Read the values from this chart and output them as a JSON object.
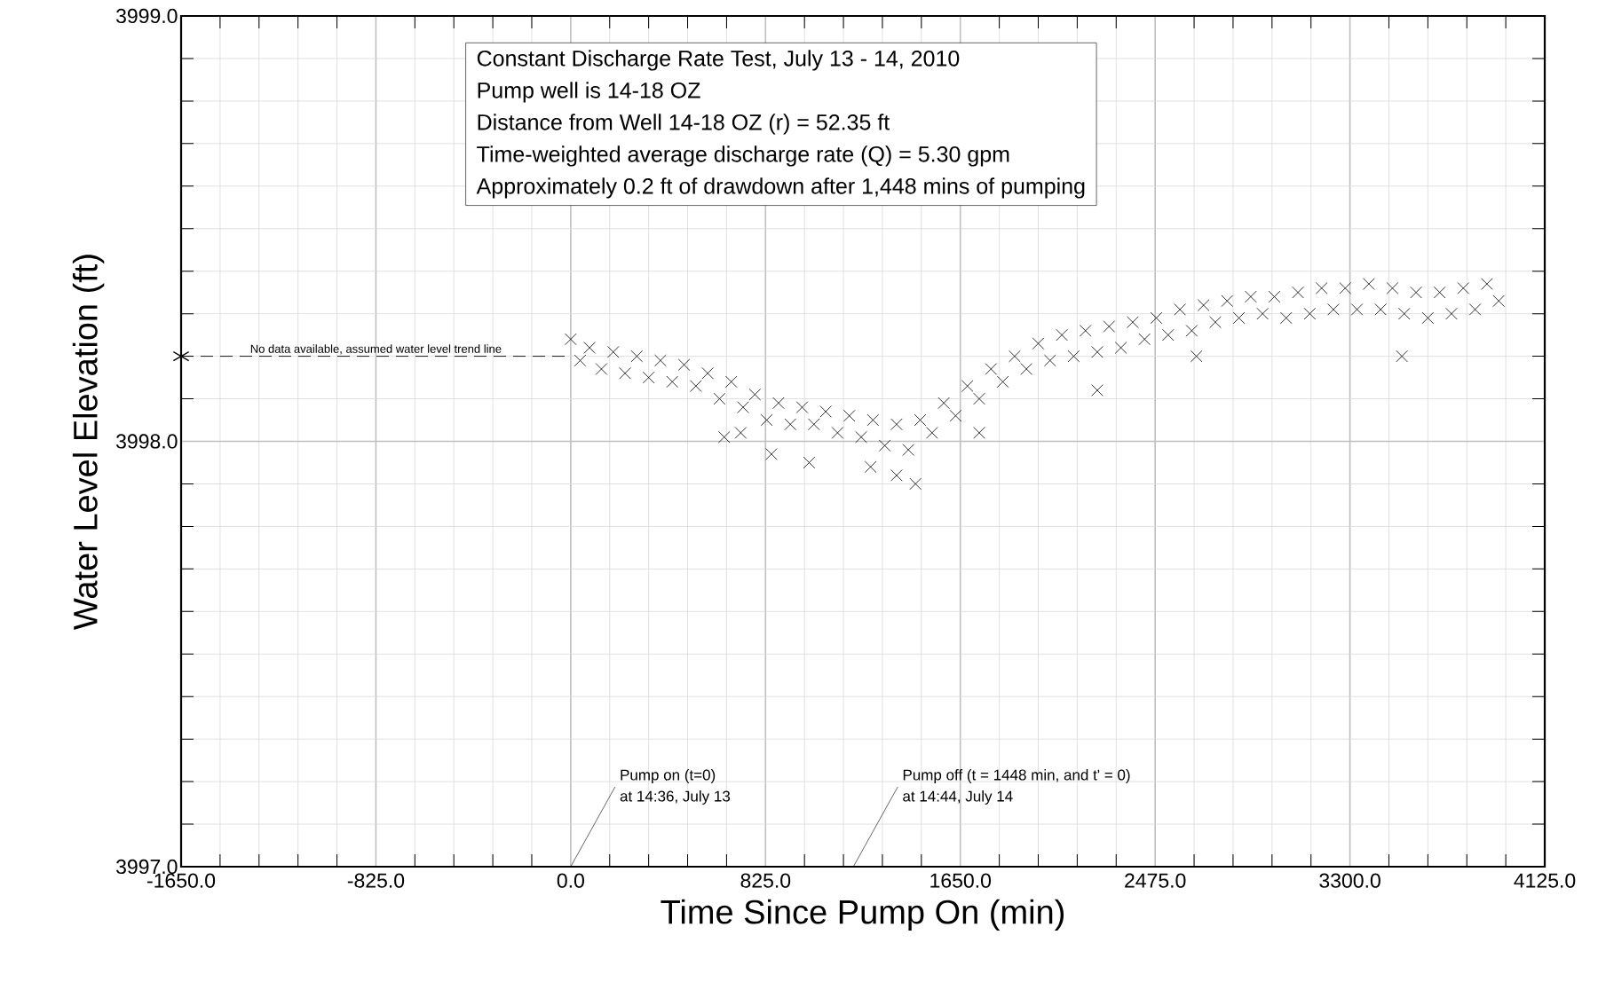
{
  "chart_data": {
    "type": "scatter",
    "title": "Constant Discharge Rate Test, July 13 - 14, 2010",
    "xlabel": "Time Since Pump On (min)",
    "ylabel": "Water Level Elevation (ft)",
    "xlim": [
      -1650,
      4125
    ],
    "ylim": [
      3997,
      3999
    ],
    "xticks": [
      {
        "value": -1650,
        "label": "-1650.0"
      },
      {
        "value": -825,
        "label": "-825.0"
      },
      {
        "value": 0,
        "label": "0.0"
      },
      {
        "value": 825,
        "label": "825.0"
      },
      {
        "value": 1650,
        "label": "1650.0"
      },
      {
        "value": 2475,
        "label": "2475.0"
      },
      {
        "value": 3300,
        "label": "3300.0"
      },
      {
        "value": 4125,
        "label": "4125.0"
      }
    ],
    "yticks": [
      {
        "value": 3997,
        "label": "3997.0"
      },
      {
        "value": 3998,
        "label": "3998.0"
      },
      {
        "value": 3999,
        "label": "3999.0"
      }
    ],
    "grid": true,
    "annotations": [
      "Pump well is 14-18 OZ",
      "Distance from Well 14-18 OZ (r) = 52.35 ft",
      "Time-weighted average discharge rate (Q) = 5.30 gpm",
      "Approximately 0.2 ft of drawdown after 1,448 mins of pumping",
      {
        "text": "No data available, assumed water level trend line",
        "x": -825,
        "y": 3998.2
      },
      "Pump on (t=0)",
      "at 14:36, July 13",
      "Pump off (t = 1448 min, and t' = 0)",
      "at 14:44, July 14"
    ],
    "series": [
      {
        "marker": "cross",
        "color": "#000000",
        "x": [
          0,
          40,
          80,
          130,
          180,
          230,
          280,
          330,
          380,
          430,
          480,
          530,
          580,
          630,
          680,
          730,
          780,
          830,
          880,
          930,
          980,
          1030,
          1080,
          1130,
          1180,
          1230,
          1280,
          1330,
          1380,
          1430,
          1480,
          1530,
          1580,
          1630,
          1680,
          1730,
          1780,
          1830,
          1880,
          1930,
          1980,
          2030,
          2080,
          2130,
          2180,
          2230,
          2280,
          2330,
          2380,
          2430,
          2480,
          2530,
          2580,
          2630,
          2680,
          2730,
          2780,
          2830,
          2880,
          2930,
          2980,
          3030,
          3080,
          3130,
          3180,
          3230,
          3280,
          3330,
          3380,
          3430,
          3480,
          3530,
          3580,
          3630,
          3680,
          3730,
          3780,
          3830,
          3880,
          3930,
          650,
          720,
          850,
          1010,
          1270,
          1380,
          1460,
          1730,
          2230,
          2650,
          3520
        ],
        "values": [
          3998.24,
          3998.19,
          3998.22,
          3998.17,
          3998.21,
          3998.16,
          3998.2,
          3998.15,
          3998.19,
          3998.14,
          3998.18,
          3998.13,
          3998.16,
          3998.1,
          3998.14,
          3998.08,
          3998.11,
          3998.05,
          3998.09,
          3998.04,
          3998.08,
          3998.04,
          3998.07,
          3998.02,
          3998.06,
          3998.01,
          3998.05,
          3997.99,
          3998.04,
          3997.98,
          3998.05,
          3998.02,
          3998.09,
          3998.06,
          3998.13,
          3998.1,
          3998.17,
          3998.14,
          3998.2,
          3998.17,
          3998.23,
          3998.19,
          3998.25,
          3998.2,
          3998.26,
          3998.21,
          3998.27,
          3998.22,
          3998.28,
          3998.24,
          3998.29,
          3998.25,
          3998.31,
          3998.26,
          3998.32,
          3998.28,
          3998.33,
          3998.29,
          3998.34,
          3998.3,
          3998.34,
          3998.29,
          3998.35,
          3998.3,
          3998.36,
          3998.31,
          3998.36,
          3998.31,
          3998.37,
          3998.31,
          3998.36,
          3998.3,
          3998.35,
          3998.29,
          3998.35,
          3998.3,
          3998.36,
          3998.31,
          3998.37,
          3998.33,
          3998.01,
          3998.02,
          3997.97,
          3997.95,
          3997.94,
          3997.92,
          3997.9,
          3998.02,
          3998.12,
          3998.2,
          3998.2
        ]
      },
      {
        "type": "line",
        "line_style": "dashed",
        "color": "#000000",
        "x": [
          -1650,
          0
        ],
        "values": [
          3998.2,
          3998.2
        ]
      },
      {
        "marker": "cross",
        "color": "#000000",
        "x": [
          -1650
        ],
        "values": [
          3998.2
        ]
      }
    ]
  }
}
